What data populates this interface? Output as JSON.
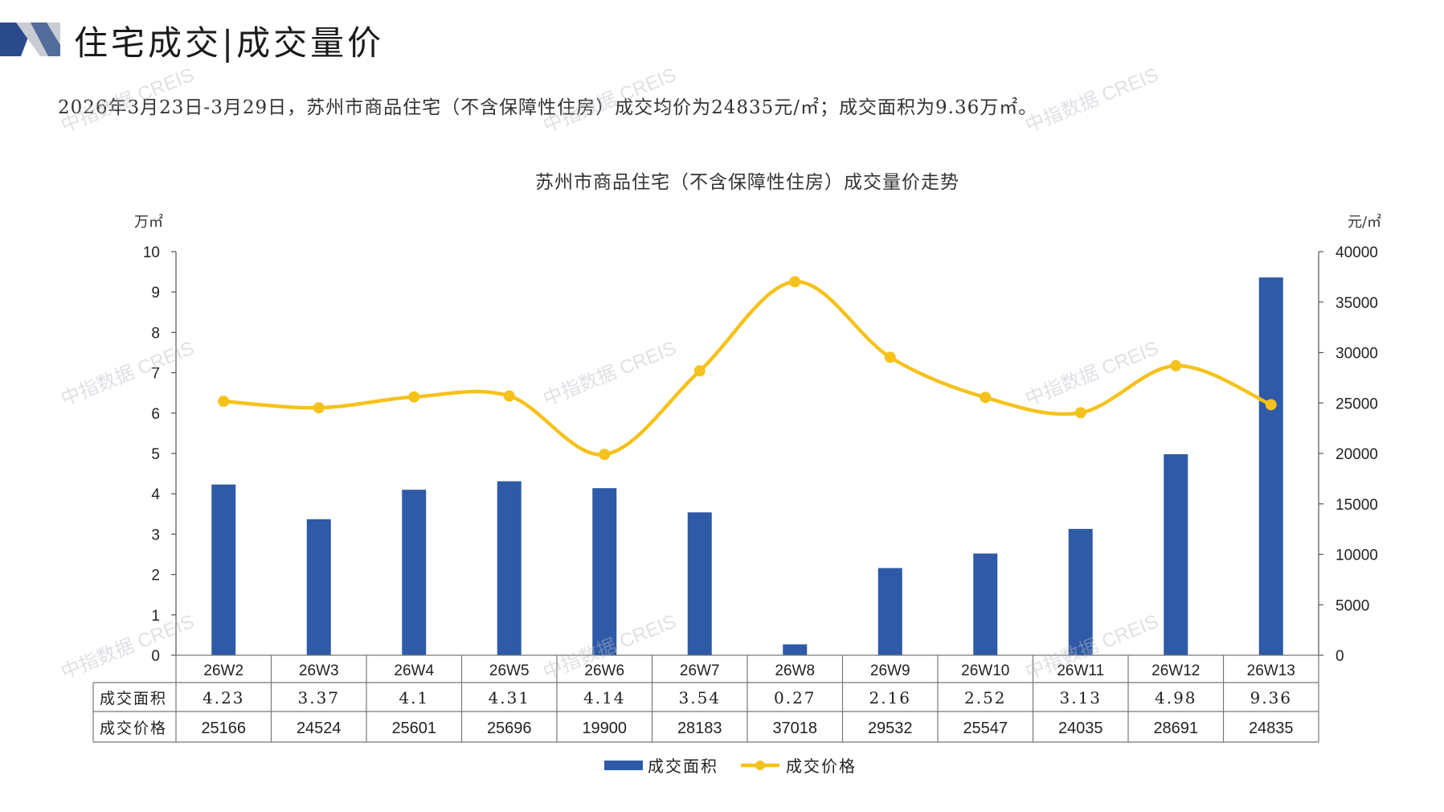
{
  "page": {
    "title": "住宅成交|成交量价",
    "summary": "2026年3月23日-3月29日，苏州市商品住宅（不含保障性住房）成交均价为24835元/㎡；成交面积为9.36万㎡。",
    "watermark": "中指数据 CREIS"
  },
  "colors": {
    "bar": "#2e5aa7",
    "line": "#f5c21b",
    "accent_dark": "#2b4a8c",
    "accent_light": "#c9ccd3"
  },
  "chart_data": {
    "type": "bar",
    "title": "苏州市商品住宅（不含保障性住房）成交量价走势",
    "categories": [
      "26W2",
      "26W3",
      "26W4",
      "26W5",
      "26W6",
      "26W7",
      "26W8",
      "26W9",
      "26W10",
      "26W11",
      "26W12",
      "26W13"
    ],
    "series": [
      {
        "name": "成交面积",
        "type": "bar",
        "axis": "left",
        "values": [
          4.23,
          3.37,
          4.1,
          4.31,
          4.14,
          3.54,
          0.27,
          2.16,
          2.52,
          3.13,
          4.98,
          9.36
        ],
        "labels": [
          "4.23",
          "3.37",
          "4.1",
          "4.31",
          "4.14",
          "3.54",
          "0.27",
          "2.16",
          "2.52",
          "3.13",
          "4.98",
          "9.36"
        ]
      },
      {
        "name": "成交价格",
        "type": "line",
        "axis": "right",
        "values": [
          25166,
          24524,
          25601,
          25696,
          19900,
          28183,
          37018,
          29532,
          25547,
          24035,
          28691,
          24835
        ],
        "labels": [
          "25166",
          "24524",
          "25601",
          "25696",
          "19900",
          "28183",
          "37018",
          "29532",
          "25547",
          "24035",
          "28691",
          "24835"
        ]
      }
    ],
    "yleft": {
      "unit": "万㎡",
      "ylim": [
        0,
        10
      ],
      "ticks": [
        "0",
        "1",
        "2",
        "3",
        "4",
        "5",
        "6",
        "7",
        "8",
        "9",
        "10"
      ]
    },
    "yright": {
      "unit": "元/㎡",
      "ylim": [
        0,
        40000
      ],
      "ticks": [
        "0",
        "5000",
        "10000",
        "15000",
        "20000",
        "25000",
        "30000",
        "35000",
        "40000"
      ]
    },
    "legend_position": "bottom-center",
    "data_table": true,
    "grid": false
  }
}
